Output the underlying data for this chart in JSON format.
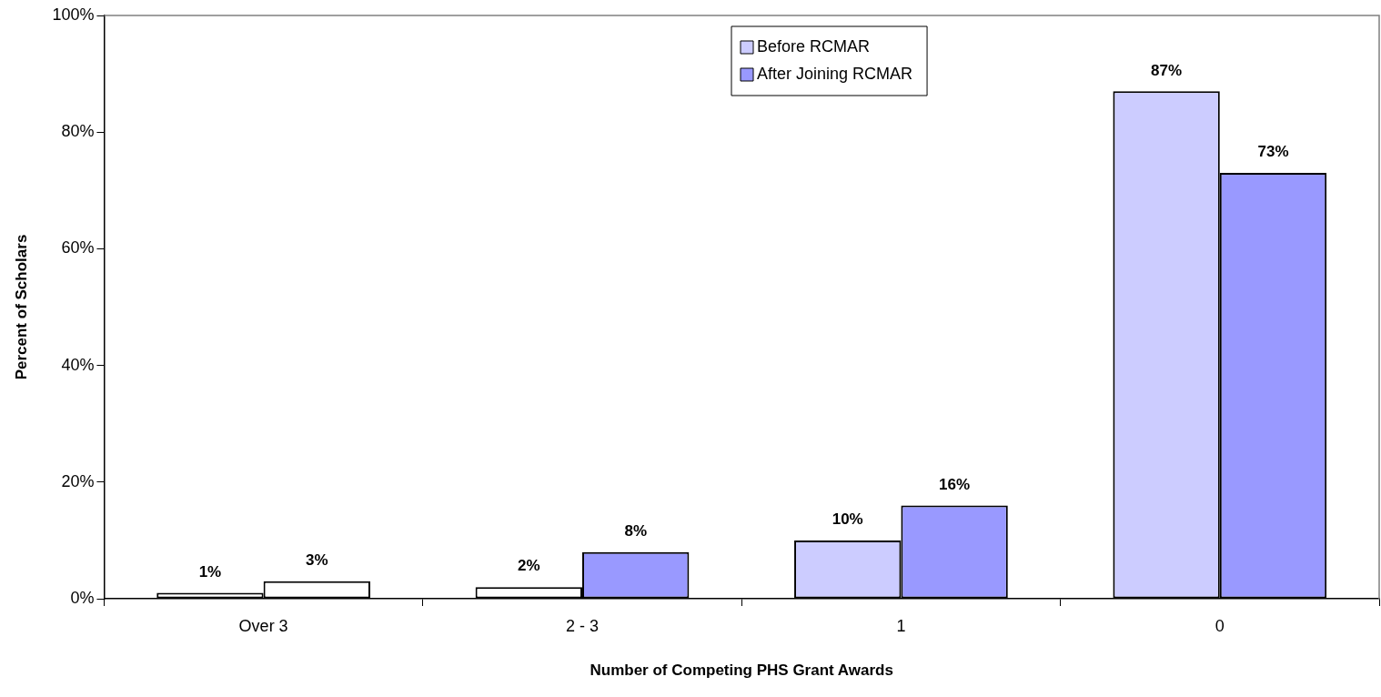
{
  "chart_data": {
    "type": "bar",
    "xlabel": "Number of Competing PHS Grant Awards",
    "ylabel": "Percent of Scholars",
    "categories": [
      "Over 3",
      "2 - 3",
      "1",
      "0"
    ],
    "series": [
      {
        "name": "Before RCMAR",
        "color": "#ccccff",
        "colors": [
          "#ffffff",
          "#ffffff",
          "#ccccff",
          "#ccccff"
        ],
        "values": [
          1,
          2,
          10,
          87
        ],
        "value_labels": [
          "1%",
          "2%",
          "10%",
          "87%"
        ]
      },
      {
        "name": "After Joining RCMAR",
        "color": "#9999ff",
        "colors": [
          "#ffffff",
          "#9999ff",
          "#9999ff",
          "#9999ff"
        ],
        "values": [
          3,
          8,
          16,
          73
        ],
        "value_labels": [
          "3%",
          "8%",
          "16%",
          "73%"
        ]
      }
    ],
    "ylim": [
      0,
      100
    ],
    "yticks": [
      {
        "value": 0,
        "label": "0%"
      },
      {
        "value": 20,
        "label": "20%"
      },
      {
        "value": 40,
        "label": "40%"
      },
      {
        "value": 60,
        "label": "60%"
      },
      {
        "value": 80,
        "label": "80%"
      },
      {
        "value": 100,
        "label": "100%"
      }
    ],
    "grid": false,
    "legend": "top right"
  }
}
